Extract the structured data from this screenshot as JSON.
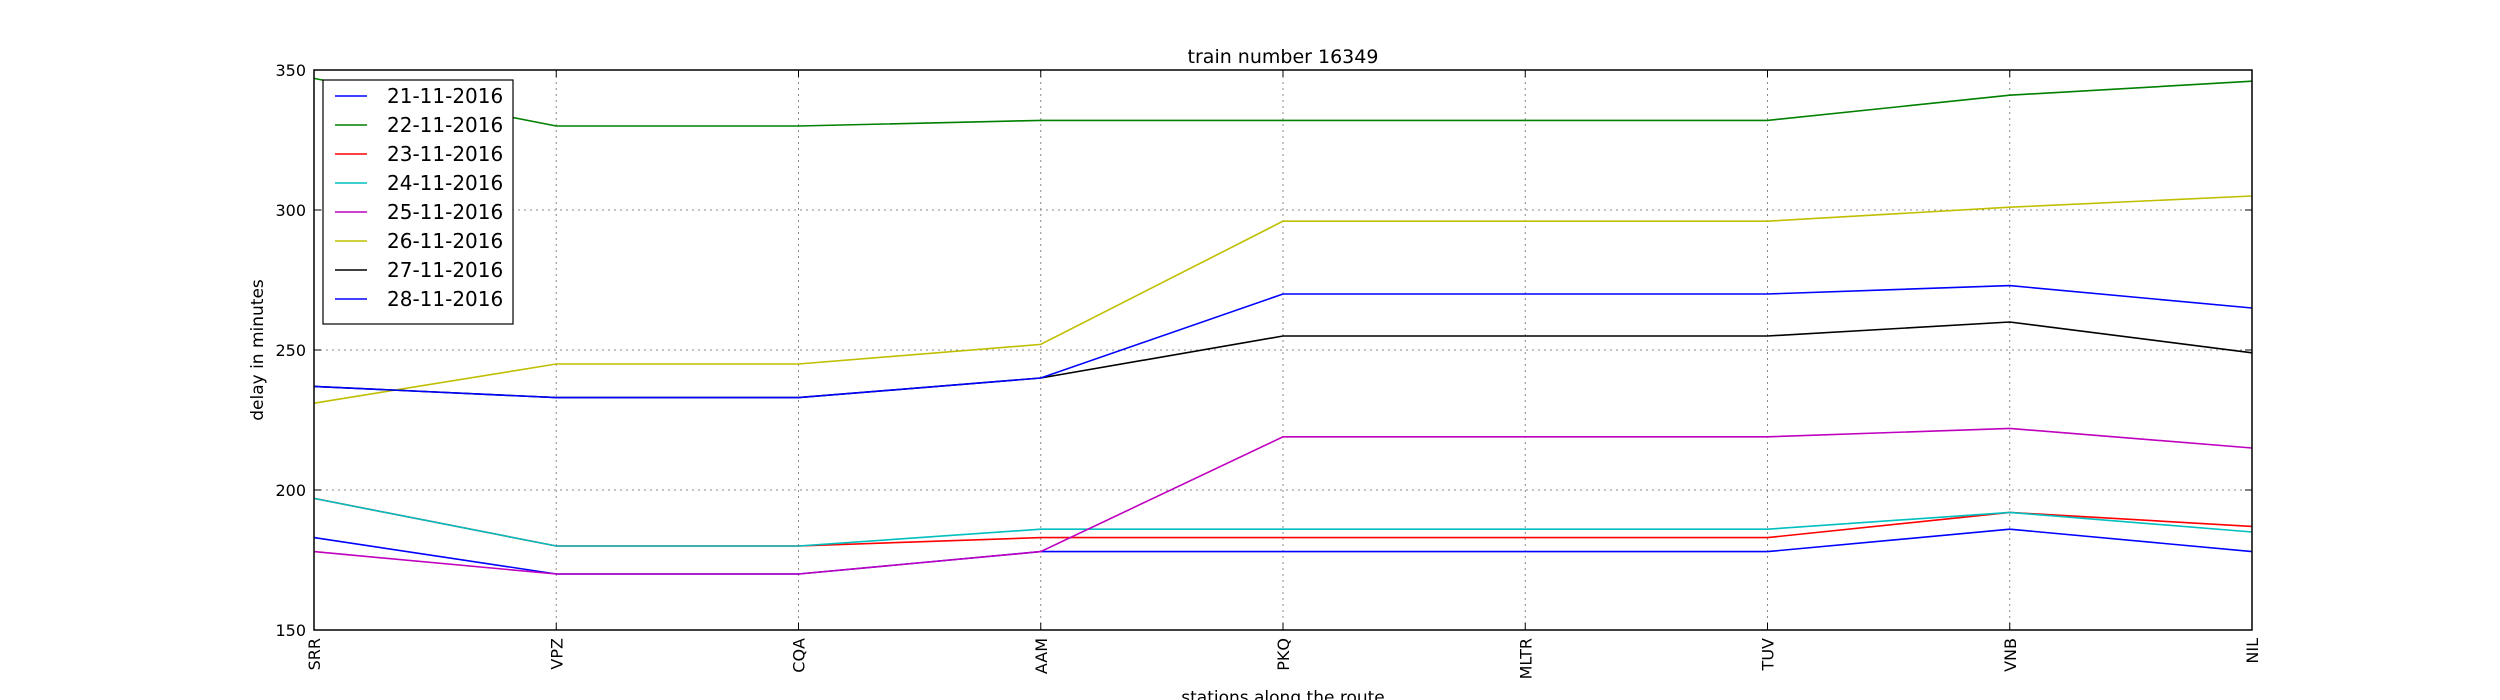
{
  "chart_data": {
    "type": "line",
    "title": "train number 16349",
    "xlabel": "stations along the route",
    "ylabel": "delay in minutes",
    "categories": [
      "SRR",
      "VPZ",
      "CQA",
      "AAM",
      "PKQ",
      "MLTR",
      "TUV",
      "VNB",
      "NIL"
    ],
    "yticks": [
      150,
      200,
      250,
      300,
      350
    ],
    "ylim": [
      150,
      350
    ],
    "grid": true,
    "legend_position": "top-left",
    "series": [
      {
        "name": "21-11-2016",
        "color": "#0000ff",
        "values": [
          183,
          170,
          170,
          178,
          178,
          178,
          178,
          186,
          178
        ]
      },
      {
        "name": "22-11-2016",
        "color": "#008000",
        "values": [
          347,
          330,
          330,
          332,
          332,
          332,
          332,
          341,
          346
        ]
      },
      {
        "name": "23-11-2016",
        "color": "#ff0000",
        "values": [
          197,
          180,
          180,
          183,
          183,
          183,
          183,
          192,
          187
        ]
      },
      {
        "name": "24-11-2016",
        "color": "#00bfbf",
        "values": [
          197,
          180,
          180,
          186,
          186,
          186,
          186,
          192,
          185
        ]
      },
      {
        "name": "25-11-2016",
        "color": "#bf00bf",
        "values": [
          178,
          170,
          170,
          178,
          219,
          219,
          219,
          222,
          215
        ]
      },
      {
        "name": "26-11-2016",
        "color": "#bfbf00",
        "values": [
          231,
          245,
          245,
          252,
          296,
          296,
          296,
          301,
          305
        ]
      },
      {
        "name": "27-11-2016",
        "color": "#000000",
        "values": [
          237,
          233,
          233,
          240,
          255,
          255,
          255,
          260,
          249
        ]
      },
      {
        "name": "28-11-2016",
        "color": "#0000ff",
        "values": [
          237,
          233,
          233,
          240,
          270,
          270,
          270,
          273,
          265
        ]
      }
    ]
  }
}
